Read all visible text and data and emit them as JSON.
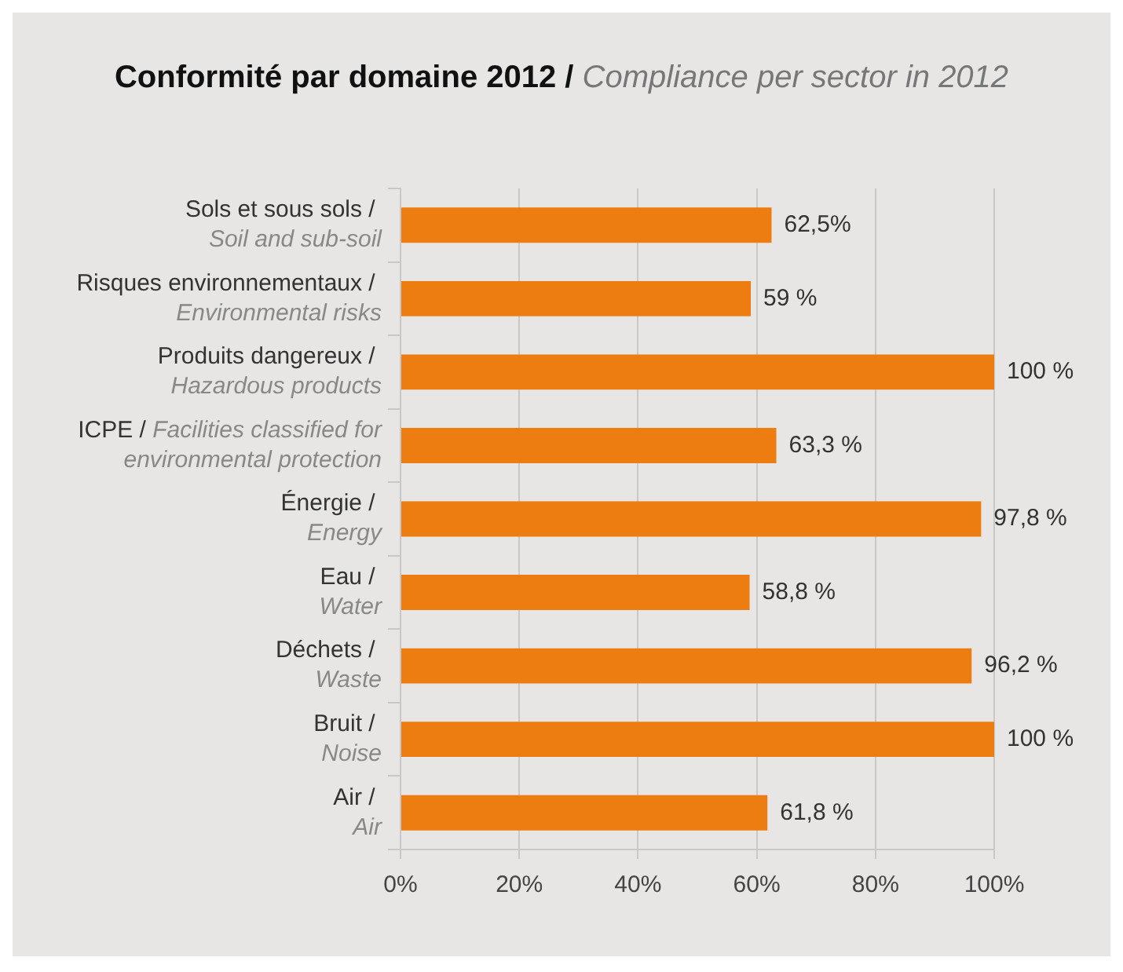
{
  "chart_data": {
    "type": "bar",
    "orientation": "horizontal",
    "title": "Conformité par domaine 2012 / Compliance per sector in 2012",
    "categories": [
      "Sols et sous sols /\nSoil and sub-soil",
      "Risques environnementaux /\nEnvironmental risks",
      "Produits dangereux /\nHazardous products",
      "ICPE / Facilities classified for\nenvironmental protection",
      "Énergie /\nEnergy",
      "Eau /\nWater",
      "Déchets /\nWaste",
      "Bruit /\nNoise",
      "Air /\nAir"
    ],
    "values": [
      62.5,
      59,
      100,
      63.3,
      97.8,
      58.8,
      96.2,
      100,
      61.8
    ],
    "value_labels": [
      "62,5%",
      "59 %",
      "100 %",
      "63,3 %",
      "97,8 %",
      "58,8 %",
      "96,2 %",
      "100 %",
      "61,8 %"
    ],
    "color": "#ee7d11",
    "xlim": [
      0,
      100
    ],
    "xticks": [
      {
        "value": 0,
        "label": "0%"
      },
      {
        "value": 20,
        "label": "20%"
      },
      {
        "value": 40,
        "label": "40%"
      },
      {
        "value": 60,
        "label": "60%"
      },
      {
        "value": 80,
        "label": "80%"
      },
      {
        "value": 100,
        "label": "100%"
      }
    ],
    "grid": "x",
    "legend": false
  }
}
